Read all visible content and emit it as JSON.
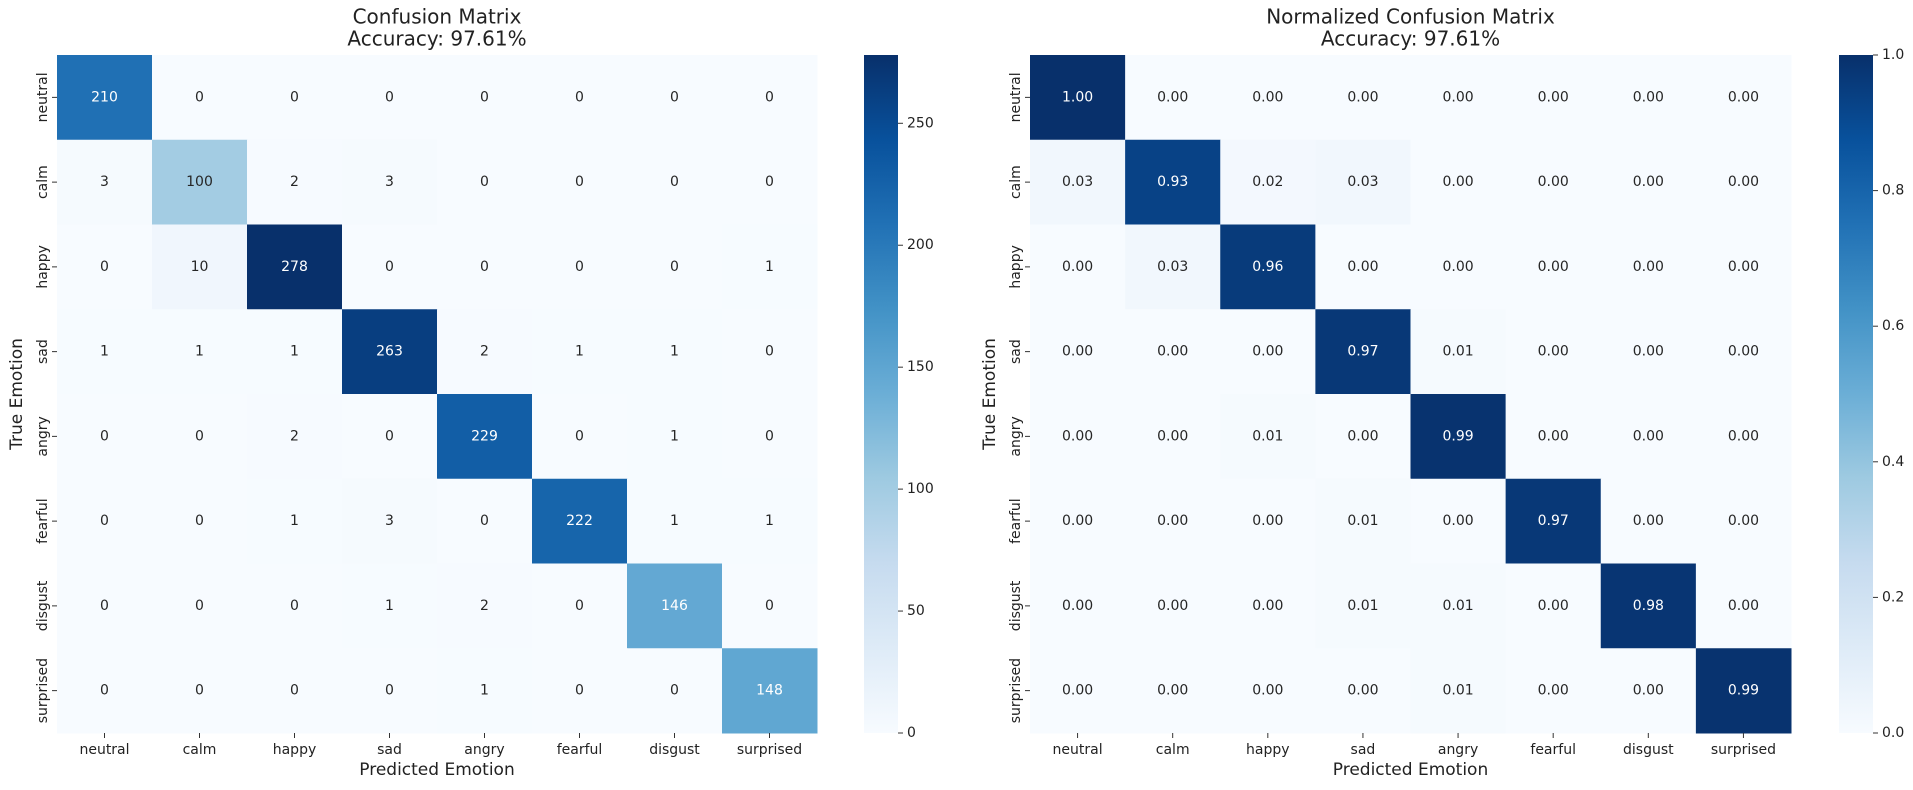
{
  "chart_data": [
    {
      "type": "heatmap",
      "title": "Confusion Matrix",
      "subtitle": "Accuracy: 97.61%",
      "xlabel": "Predicted Emotion",
      "ylabel": "True Emotion",
      "cmap": "Blues",
      "categories": [
        "neutral",
        "calm",
        "happy",
        "sad",
        "angry",
        "fearful",
        "disgust",
        "surprised"
      ],
      "y_categories": [
        "neutral",
        "calm",
        "happy",
        "sad",
        "angry",
        "fearful",
        "disgust",
        "surprised"
      ],
      "values": [
        [
          210,
          0,
          0,
          0,
          0,
          0,
          0,
          0
        ],
        [
          3,
          100,
          2,
          3,
          0,
          0,
          0,
          0
        ],
        [
          0,
          10,
          278,
          0,
          0,
          0,
          0,
          1
        ],
        [
          1,
          1,
          1,
          263,
          2,
          1,
          1,
          0
        ],
        [
          0,
          0,
          2,
          0,
          229,
          0,
          1,
          0
        ],
        [
          0,
          0,
          1,
          3,
          0,
          222,
          1,
          1
        ],
        [
          0,
          0,
          0,
          1,
          2,
          0,
          146,
          0
        ],
        [
          0,
          0,
          0,
          0,
          1,
          0,
          0,
          148
        ]
      ],
      "clim": [
        0,
        278
      ],
      "cticks": [
        0,
        50,
        100,
        150,
        200,
        250
      ]
    },
    {
      "type": "heatmap",
      "title": "Normalized Confusion Matrix",
      "subtitle": "Accuracy: 97.61%",
      "xlabel": "Predicted Emotion",
      "ylabel": "True Emotion",
      "cmap": "Blues",
      "categories": [
        "neutral",
        "calm",
        "happy",
        "sad",
        "angry",
        "fearful",
        "disgust",
        "surprised"
      ],
      "y_categories": [
        "neutral",
        "calm",
        "happy",
        "sad",
        "angry",
        "fearful",
        "disgust",
        "surprised"
      ],
      "values": [
        [
          1,
          0,
          0,
          0,
          0,
          0,
          0,
          0
        ],
        [
          0.03,
          0.93,
          0.02,
          0.03,
          0,
          0,
          0,
          0
        ],
        [
          0,
          0.03,
          0.96,
          0,
          0,
          0,
          0,
          0
        ],
        [
          0,
          0,
          0,
          0.97,
          0.01,
          0,
          0,
          0
        ],
        [
          0,
          0,
          0.01,
          0,
          0.99,
          0,
          0,
          0
        ],
        [
          0,
          0,
          0,
          0.01,
          0,
          0.97,
          0,
          0
        ],
        [
          0,
          0,
          0,
          0.01,
          0.01,
          0,
          0.98,
          0
        ],
        [
          0,
          0,
          0,
          0,
          0.01,
          0,
          0,
          0.99
        ]
      ],
      "value_labels": [
        [
          "1.00",
          "0.00",
          "0.00",
          "0.00",
          "0.00",
          "0.00",
          "0.00",
          "0.00"
        ],
        [
          "0.03",
          "0.93",
          "0.02",
          "0.03",
          "0.00",
          "0.00",
          "0.00",
          "0.00"
        ],
        [
          "0.00",
          "0.03",
          "0.96",
          "0.00",
          "0.00",
          "0.00",
          "0.00",
          "0.00"
        ],
        [
          "0.00",
          "0.00",
          "0.00",
          "0.97",
          "0.01",
          "0.00",
          "0.00",
          "0.00"
        ],
        [
          "0.00",
          "0.00",
          "0.01",
          "0.00",
          "0.99",
          "0.00",
          "0.00",
          "0.00"
        ],
        [
          "0.00",
          "0.00",
          "0.00",
          "0.01",
          "0.00",
          "0.97",
          "0.00",
          "0.00"
        ],
        [
          "0.00",
          "0.00",
          "0.00",
          "0.01",
          "0.01",
          "0.00",
          "0.98",
          "0.00"
        ],
        [
          "0.00",
          "0.00",
          "0.00",
          "0.00",
          "0.01",
          "0.00",
          "0.00",
          "0.99"
        ]
      ],
      "clim": [
        0,
        1
      ],
      "cticks": [
        {
          "value": 0,
          "label": "0.0"
        },
        {
          "value": 0.2,
          "label": "0.2"
        },
        {
          "value": 0.4,
          "label": "0.4"
        },
        {
          "value": 0.6,
          "label": "0.6"
        },
        {
          "value": 0.8,
          "label": "0.8"
        },
        {
          "value": 1,
          "label": "1.0"
        }
      ]
    }
  ]
}
